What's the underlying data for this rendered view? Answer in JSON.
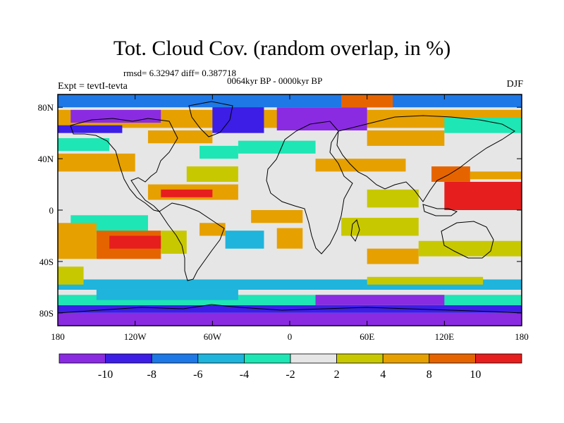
{
  "chart_data": {
    "type": "heatmap",
    "title": "Tot. Cloud Cov. (random overlap, in %)",
    "stats_label": "rmsd= 6.32947 diff= 0.387718",
    "period_label": "0064kyr BP - 0000kyr BP",
    "experiment_label": "Expt = tevtI-tevta",
    "season_label": "DJF",
    "x_range": [
      -180,
      180
    ],
    "y_range": [
      -90,
      90
    ],
    "x_ticks": [
      {
        "value": -180,
        "label": "180"
      },
      {
        "value": -120,
        "label": "120W"
      },
      {
        "value": -60,
        "label": "60W"
      },
      {
        "value": 0,
        "label": "0"
      },
      {
        "value": 60,
        "label": "60E"
      },
      {
        "value": 120,
        "label": "120E"
      },
      {
        "value": 180,
        "label": "180"
      }
    ],
    "y_ticks": [
      {
        "value": 80,
        "label": "80N"
      },
      {
        "value": 40,
        "label": "40N"
      },
      {
        "value": 0,
        "label": "0"
      },
      {
        "value": -40,
        "label": "40S"
      },
      {
        "value": -80,
        "label": "80S"
      }
    ],
    "colorbar": {
      "boundaries": [
        -10,
        -8,
        -6,
        -4,
        -2,
        2,
        4,
        8,
        10
      ],
      "labels": [
        "-10",
        "-8",
        "-6",
        "-4",
        "-2",
        "2",
        "4",
        "8",
        "10"
      ],
      "colors": [
        "#8a2be2",
        "#3c1ee6",
        "#1e78e6",
        "#1eb4dc",
        "#1ee6b4",
        "#e6e6e6",
        "#c8c800",
        "#e6a000",
        "#e66400",
        "#e61e1e"
      ]
    },
    "regions": [
      {
        "lon": [
          -180,
          180
        ],
        "lat": [
          -90,
          90
        ],
        "cat": 5
      },
      {
        "lon": [
          -180,
          180
        ],
        "lat": [
          -90,
          -80
        ],
        "cat": 0
      },
      {
        "lon": [
          -180,
          180
        ],
        "lat": [
          -80,
          -74
        ],
        "cat": 1
      },
      {
        "lon": [
          -180,
          180
        ],
        "lat": [
          -74,
          -66
        ],
        "cat": 4
      },
      {
        "lon": [
          -150,
          -40
        ],
        "lat": [
          -70,
          -62
        ],
        "cat": 3
      },
      {
        "lon": [
          20,
          120
        ],
        "lat": [
          -74,
          -66
        ],
        "cat": 0
      },
      {
        "lon": [
          -180,
          180
        ],
        "lat": [
          -62,
          -54
        ],
        "cat": 3
      },
      {
        "lon": [
          60,
          150
        ],
        "lat": [
          -58,
          -52
        ],
        "cat": 6
      },
      {
        "lon": [
          -170,
          -110
        ],
        "lat": [
          -18,
          -4
        ],
        "cat": 4
      },
      {
        "lon": [
          -150,
          -100
        ],
        "lat": [
          -38,
          -16
        ],
        "cat": 8
      },
      {
        "lon": [
          -140,
          -90
        ],
        "lat": [
          -30,
          -20
        ],
        "cat": 9
      },
      {
        "lon": [
          -100,
          -80
        ],
        "lat": [
          -34,
          -16
        ],
        "cat": 6
      },
      {
        "lon": [
          -180,
          -150
        ],
        "lat": [
          -38,
          -10
        ],
        "cat": 7
      },
      {
        "lon": [
          -180,
          -160
        ],
        "lat": [
          -58,
          -44
        ],
        "cat": 6
      },
      {
        "lon": [
          -110,
          -40
        ],
        "lat": [
          8,
          20
        ],
        "cat": 7
      },
      {
        "lon": [
          -100,
          -60
        ],
        "lat": [
          10,
          16
        ],
        "cat": 9
      },
      {
        "lon": [
          -50,
          -20
        ],
        "lat": [
          -30,
          -16
        ],
        "cat": 3
      },
      {
        "lon": [
          -30,
          10
        ],
        "lat": [
          -10,
          0
        ],
        "cat": 7
      },
      {
        "lon": [
          -10,
          10
        ],
        "lat": [
          -30,
          -14
        ],
        "cat": 7
      },
      {
        "lon": [
          -70,
          -50
        ],
        "lat": [
          -20,
          -10
        ],
        "cat": 7
      },
      {
        "lon": [
          40,
          100
        ],
        "lat": [
          -20,
          -6
        ],
        "cat": 6
      },
      {
        "lon": [
          60,
          100
        ],
        "lat": [
          -42,
          -30
        ],
        "cat": 7
      },
      {
        "lon": [
          100,
          180
        ],
        "lat": [
          -36,
          -24
        ],
        "cat": 6
      },
      {
        "lon": [
          120,
          180
        ],
        "lat": [
          0,
          22
        ],
        "cat": 9
      },
      {
        "lon": [
          110,
          140
        ],
        "lat": [
          22,
          34
        ],
        "cat": 8
      },
      {
        "lon": [
          140,
          180
        ],
        "lat": [
          24,
          30
        ],
        "cat": 7
      },
      {
        "lon": [
          20,
          90
        ],
        "lat": [
          30,
          40
        ],
        "cat": 7
      },
      {
        "lon": [
          60,
          100
        ],
        "lat": [
          2,
          16
        ],
        "cat": 6
      },
      {
        "lon": [
          -180,
          -120
        ],
        "lat": [
          30,
          44
        ],
        "cat": 7
      },
      {
        "lon": [
          -80,
          -40
        ],
        "lat": [
          22,
          34
        ],
        "cat": 6
      },
      {
        "lon": [
          -70,
          -40
        ],
        "lat": [
          40,
          50
        ],
        "cat": 4
      },
      {
        "lon": [
          -180,
          -140
        ],
        "lat": [
          46,
          56
        ],
        "cat": 4
      },
      {
        "lon": [
          -40,
          20
        ],
        "lat": [
          44,
          54
        ],
        "cat": 4
      },
      {
        "lon": [
          -180,
          180
        ],
        "lat": [
          64,
          78
        ],
        "cat": 7
      },
      {
        "lon": [
          -170,
          -100
        ],
        "lat": [
          68,
          78
        ],
        "cat": 0
      },
      {
        "lon": [
          -180,
          -130
        ],
        "lat": [
          60,
          66
        ],
        "cat": 1
      },
      {
        "lon": [
          -110,
          -60
        ],
        "lat": [
          52,
          62
        ],
        "cat": 7
      },
      {
        "lon": [
          -60,
          -20
        ],
        "lat": [
          60,
          82
        ],
        "cat": 1
      },
      {
        "lon": [
          -10,
          60
        ],
        "lat": [
          62,
          80
        ],
        "cat": 0
      },
      {
        "lon": [
          60,
          120
        ],
        "lat": [
          50,
          62
        ],
        "cat": 7
      },
      {
        "lon": [
          120,
          180
        ],
        "lat": [
          60,
          72
        ],
        "cat": 4
      },
      {
        "lon": [
          -180,
          180
        ],
        "lat": [
          80,
          90
        ],
        "cat": 2
      },
      {
        "lon": [
          40,
          80
        ],
        "lat": [
          80,
          90
        ],
        "cat": 8
      }
    ]
  }
}
